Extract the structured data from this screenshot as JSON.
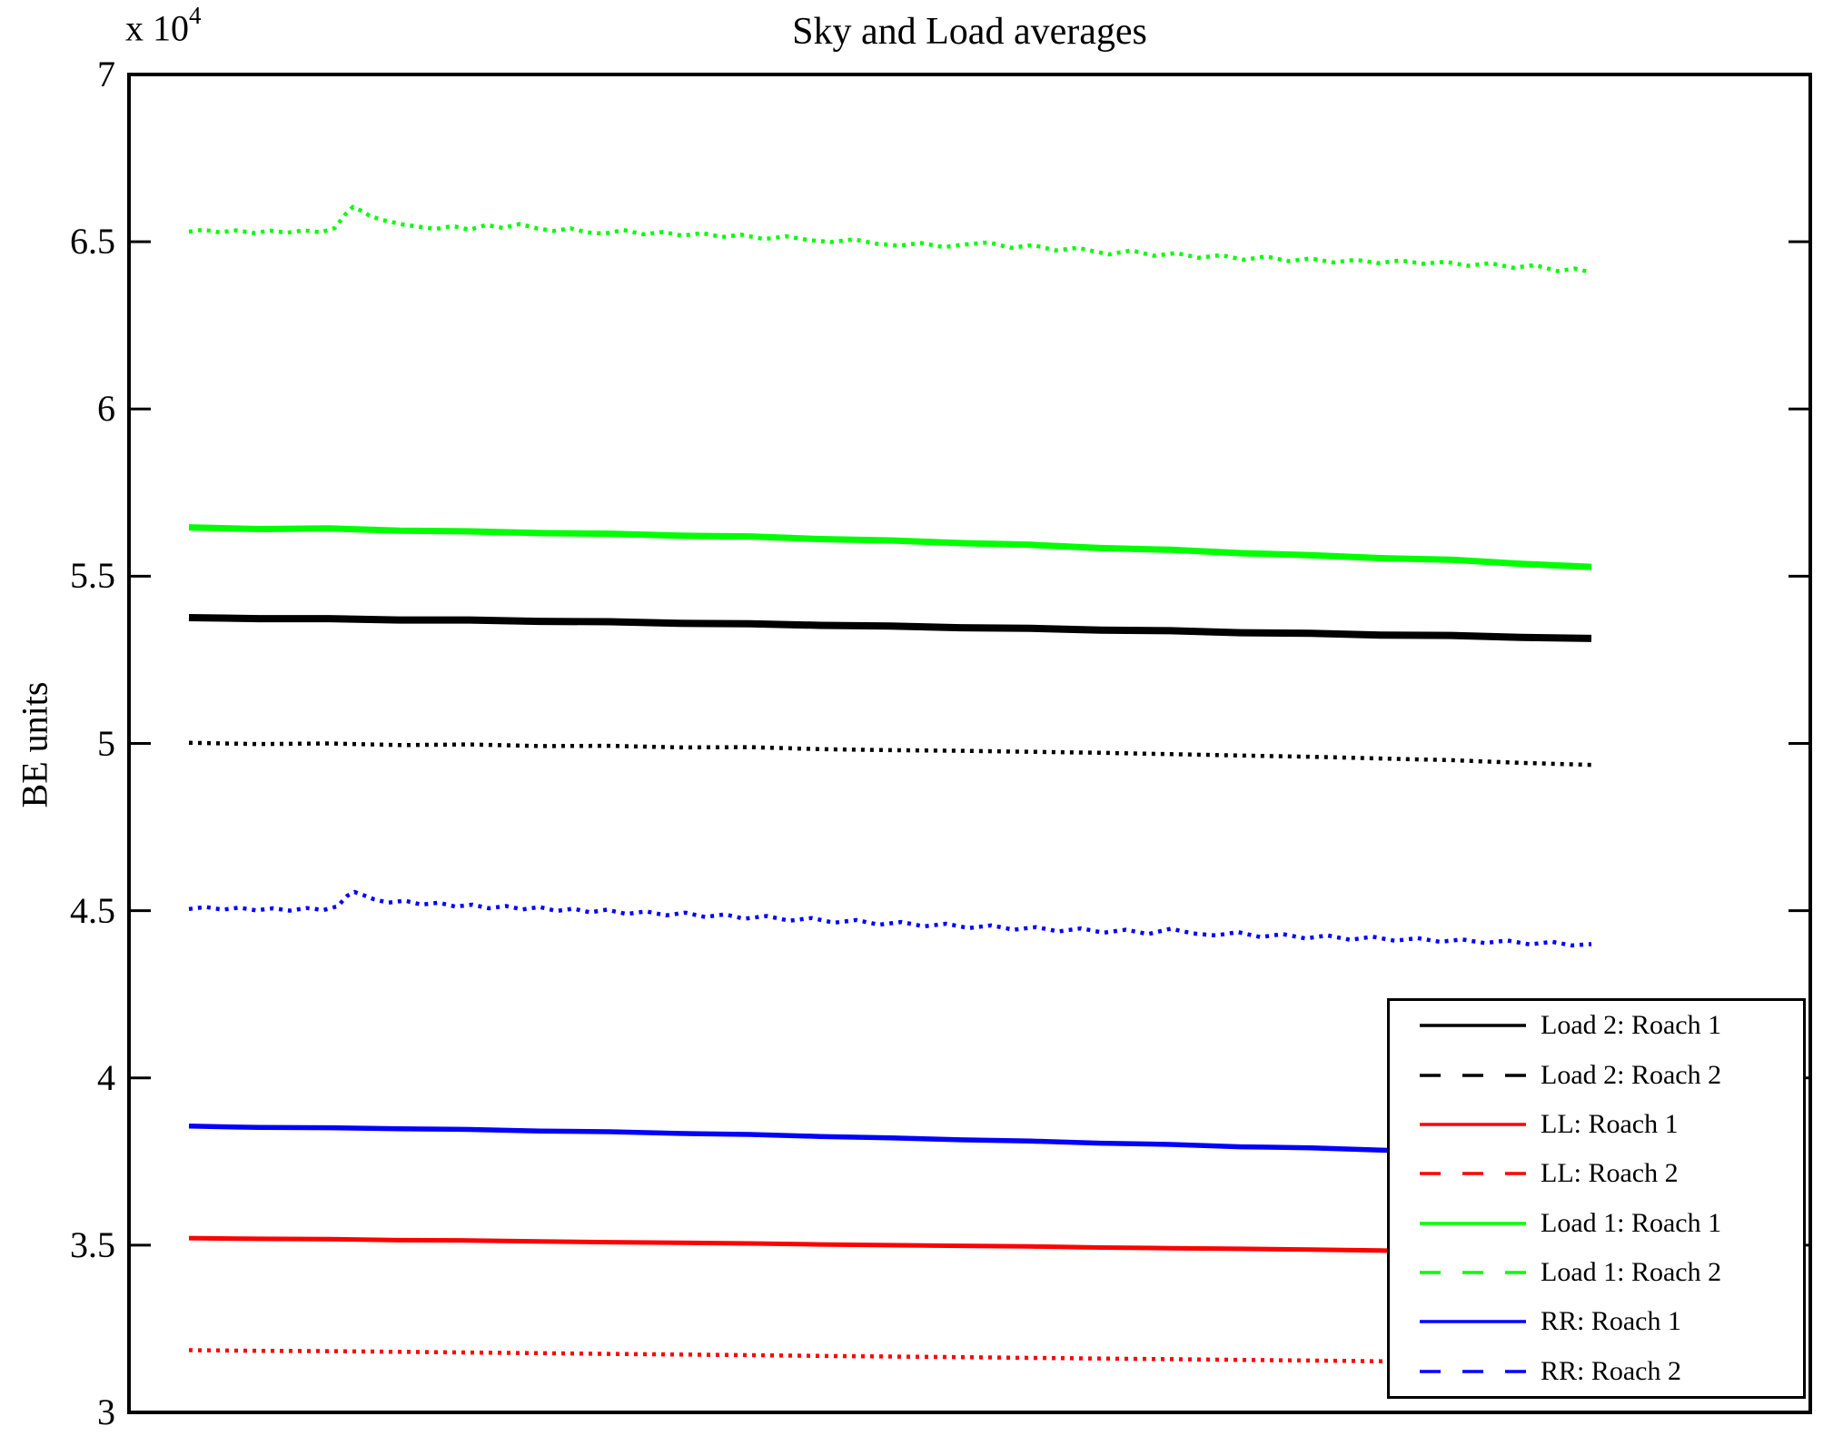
{
  "offset": {
    "base": "x 10",
    "exp": "4"
  },
  "chart_data": {
    "type": "line",
    "title": "Sky and Load averages",
    "ylabel": "BE units",
    "xlabel": "",
    "value_units": "BE units x 10^4",
    "y_multiplier_text": "x 10^4",
    "ylim": [
      3,
      7
    ],
    "yticks": [
      7,
      6.5,
      6,
      5.5,
      5,
      4.5,
      4,
      3.5,
      3
    ],
    "ytick_labels": [
      "7",
      "6.5",
      "6",
      "5.5",
      "5",
      "4.5",
      "4",
      "3.5",
      "3"
    ],
    "xticks_visible": false,
    "grid": false,
    "axis_color": "#000000",
    "background": "#ffffff",
    "legend_position": "lower right",
    "series": [
      {
        "name": "Load 2: Roach 1",
        "color": "#000000",
        "style": "solid",
        "stroke_width": 8,
        "points": [
          [
            0,
            5.376
          ],
          [
            0.05,
            5.373
          ],
          [
            0.1,
            5.373
          ],
          [
            0.15,
            5.369
          ],
          [
            0.2,
            5.369
          ],
          [
            0.25,
            5.365
          ],
          [
            0.3,
            5.364
          ],
          [
            0.35,
            5.359
          ],
          [
            0.4,
            5.358
          ],
          [
            0.45,
            5.353
          ],
          [
            0.5,
            5.351
          ],
          [
            0.55,
            5.346
          ],
          [
            0.6,
            5.344
          ],
          [
            0.65,
            5.339
          ],
          [
            0.7,
            5.337
          ],
          [
            0.75,
            5.331
          ],
          [
            0.8,
            5.329
          ],
          [
            0.85,
            5.324
          ],
          [
            0.9,
            5.323
          ],
          [
            0.95,
            5.317
          ],
          [
            1,
            5.314
          ]
        ]
      },
      {
        "name": "Load 2: Roach 2",
        "color": "#000000",
        "style": "dashed",
        "stroke_width": 4.5,
        "points": [
          [
            0,
            5.002
          ],
          [
            0.05,
            4.998
          ],
          [
            0.1,
            5.0
          ],
          [
            0.15,
            4.995
          ],
          [
            0.2,
            4.997
          ],
          [
            0.25,
            4.992
          ],
          [
            0.3,
            4.993
          ],
          [
            0.35,
            4.988
          ],
          [
            0.4,
            4.989
          ],
          [
            0.45,
            4.983
          ],
          [
            0.5,
            4.98
          ],
          [
            0.55,
            4.978
          ],
          [
            0.6,
            4.975
          ],
          [
            0.65,
            4.972
          ],
          [
            0.7,
            4.968
          ],
          [
            0.75,
            4.964
          ],
          [
            0.8,
            4.96
          ],
          [
            0.85,
            4.955
          ],
          [
            0.9,
            4.95
          ],
          [
            0.95,
            4.942
          ],
          [
            1,
            4.936
          ]
        ]
      },
      {
        "name": "LL: Roach 1",
        "color": "#ff0000",
        "style": "solid",
        "stroke_width": 5,
        "points": [
          [
            0,
            3.521
          ],
          [
            0.05,
            3.519
          ],
          [
            0.1,
            3.518
          ],
          [
            0.15,
            3.515
          ],
          [
            0.2,
            3.514
          ],
          [
            0.25,
            3.511
          ],
          [
            0.3,
            3.509
          ],
          [
            0.35,
            3.507
          ],
          [
            0.4,
            3.505
          ],
          [
            0.45,
            3.502
          ],
          [
            0.5,
            3.5
          ],
          [
            0.55,
            3.498
          ],
          [
            0.6,
            3.496
          ],
          [
            0.65,
            3.493
          ],
          [
            0.7,
            3.491
          ],
          [
            0.75,
            3.489
          ],
          [
            0.8,
            3.487
          ],
          [
            0.85,
            3.484
          ],
          [
            0.9,
            3.483
          ],
          [
            0.95,
            3.481
          ],
          [
            1,
            3.479
          ]
        ]
      },
      {
        "name": "LL: Roach 2",
        "color": "#ff0000",
        "style": "dashed",
        "stroke_width": 4.5,
        "points": [
          [
            0,
            3.186
          ],
          [
            0.05,
            3.184
          ],
          [
            0.1,
            3.183
          ],
          [
            0.15,
            3.181
          ],
          [
            0.2,
            3.179
          ],
          [
            0.25,
            3.177
          ],
          [
            0.3,
            3.175
          ],
          [
            0.35,
            3.173
          ],
          [
            0.4,
            3.171
          ],
          [
            0.45,
            3.169
          ],
          [
            0.5,
            3.167
          ],
          [
            0.55,
            3.165
          ],
          [
            0.6,
            3.163
          ],
          [
            0.65,
            3.161
          ],
          [
            0.7,
            3.159
          ],
          [
            0.75,
            3.157
          ],
          [
            0.8,
            3.155
          ],
          [
            0.85,
            3.153
          ],
          [
            0.9,
            3.152
          ],
          [
            0.95,
            3.151
          ],
          [
            1,
            3.15
          ]
        ]
      },
      {
        "name": "Load 1: Roach 1",
        "color": "#00ff00",
        "style": "solid",
        "stroke_width": 7,
        "points": [
          [
            0,
            5.646
          ],
          [
            0.05,
            5.641
          ],
          [
            0.1,
            5.643
          ],
          [
            0.15,
            5.636
          ],
          [
            0.2,
            5.634
          ],
          [
            0.25,
            5.629
          ],
          [
            0.3,
            5.627
          ],
          [
            0.35,
            5.621
          ],
          [
            0.4,
            5.619
          ],
          [
            0.45,
            5.611
          ],
          [
            0.5,
            5.607
          ],
          [
            0.55,
            5.599
          ],
          [
            0.6,
            5.594
          ],
          [
            0.65,
            5.584
          ],
          [
            0.7,
            5.579
          ],
          [
            0.75,
            5.569
          ],
          [
            0.8,
            5.563
          ],
          [
            0.85,
            5.554
          ],
          [
            0.9,
            5.549
          ],
          [
            0.95,
            5.537
          ],
          [
            1,
            5.528
          ]
        ]
      },
      {
        "name": "Load 1: Roach 2",
        "color": "#00ff00",
        "style": "dashed",
        "stroke_width": 4.5,
        "points": [
          [
            0,
            6.53
          ],
          [
            0.01,
            6.536
          ],
          [
            0.022,
            6.528
          ],
          [
            0.034,
            6.534
          ],
          [
            0.046,
            6.526
          ],
          [
            0.058,
            6.533
          ],
          [
            0.07,
            6.527
          ],
          [
            0.082,
            6.534
          ],
          [
            0.094,
            6.528
          ],
          [
            0.104,
            6.541
          ],
          [
            0.112,
            6.584
          ],
          [
            0.117,
            6.604
          ],
          [
            0.123,
            6.592
          ],
          [
            0.13,
            6.575
          ],
          [
            0.14,
            6.563
          ],
          [
            0.152,
            6.552
          ],
          [
            0.164,
            6.545
          ],
          [
            0.176,
            6.538
          ],
          [
            0.188,
            6.547
          ],
          [
            0.2,
            6.536
          ],
          [
            0.212,
            6.55
          ],
          [
            0.224,
            6.541
          ],
          [
            0.236,
            6.553
          ],
          [
            0.248,
            6.54
          ],
          [
            0.26,
            6.532
          ],
          [
            0.272,
            6.54
          ],
          [
            0.284,
            6.528
          ],
          [
            0.296,
            6.524
          ],
          [
            0.31,
            6.535
          ],
          [
            0.324,
            6.522
          ],
          [
            0.338,
            6.529
          ],
          [
            0.352,
            6.518
          ],
          [
            0.366,
            6.526
          ],
          [
            0.38,
            6.514
          ],
          [
            0.394,
            6.521
          ],
          [
            0.41,
            6.508
          ],
          [
            0.426,
            6.516
          ],
          [
            0.442,
            6.505
          ],
          [
            0.458,
            6.499
          ],
          [
            0.474,
            6.507
          ],
          [
            0.49,
            6.494
          ],
          [
            0.506,
            6.488
          ],
          [
            0.522,
            6.496
          ],
          [
            0.538,
            6.484
          ],
          [
            0.554,
            6.492
          ],
          [
            0.57,
            6.498
          ],
          [
            0.586,
            6.482
          ],
          [
            0.602,
            6.49
          ],
          [
            0.618,
            6.474
          ],
          [
            0.634,
            6.482
          ],
          [
            0.64,
            6.476
          ],
          [
            0.656,
            6.462
          ],
          [
            0.672,
            6.474
          ],
          [
            0.688,
            6.458
          ],
          [
            0.704,
            6.466
          ],
          [
            0.72,
            6.452
          ],
          [
            0.736,
            6.46
          ],
          [
            0.752,
            6.446
          ],
          [
            0.768,
            6.456
          ],
          [
            0.784,
            6.442
          ],
          [
            0.8,
            6.45
          ],
          [
            0.816,
            6.438
          ],
          [
            0.832,
            6.446
          ],
          [
            0.848,
            6.436
          ],
          [
            0.864,
            6.444
          ],
          [
            0.88,
            6.434
          ],
          [
            0.896,
            6.44
          ],
          [
            0.912,
            6.428
          ],
          [
            0.928,
            6.436
          ],
          [
            0.944,
            6.422
          ],
          [
            0.96,
            6.43
          ],
          [
            0.976,
            6.412
          ],
          [
            0.988,
            6.42
          ],
          [
            1,
            6.408
          ]
        ]
      },
      {
        "name": "RR: Roach 1",
        "color": "#0000ff",
        "style": "solid",
        "stroke_width": 5.5,
        "points": [
          [
            0,
            3.856
          ],
          [
            0.05,
            3.852
          ],
          [
            0.1,
            3.851
          ],
          [
            0.15,
            3.848
          ],
          [
            0.2,
            3.846
          ],
          [
            0.25,
            3.841
          ],
          [
            0.3,
            3.839
          ],
          [
            0.35,
            3.834
          ],
          [
            0.4,
            3.831
          ],
          [
            0.45,
            3.825
          ],
          [
            0.5,
            3.821
          ],
          [
            0.55,
            3.815
          ],
          [
            0.6,
            3.811
          ],
          [
            0.65,
            3.805
          ],
          [
            0.7,
            3.801
          ],
          [
            0.75,
            3.794
          ],
          [
            0.8,
            3.791
          ],
          [
            0.85,
            3.784
          ],
          [
            0.9,
            3.781
          ],
          [
            0.95,
            3.776
          ],
          [
            1,
            3.772
          ]
        ]
      },
      {
        "name": "RR: Roach 2",
        "color": "#0000ff",
        "style": "dashed",
        "stroke_width": 4.5,
        "points": [
          [
            0,
            4.505
          ],
          [
            0.012,
            4.511
          ],
          [
            0.024,
            4.503
          ],
          [
            0.036,
            4.509
          ],
          [
            0.048,
            4.501
          ],
          [
            0.06,
            4.507
          ],
          [
            0.072,
            4.5
          ],
          [
            0.084,
            4.508
          ],
          [
            0.096,
            4.502
          ],
          [
            0.106,
            4.513
          ],
          [
            0.113,
            4.545
          ],
          [
            0.118,
            4.556
          ],
          [
            0.124,
            4.547
          ],
          [
            0.132,
            4.534
          ],
          [
            0.142,
            4.524
          ],
          [
            0.154,
            4.53
          ],
          [
            0.166,
            4.518
          ],
          [
            0.178,
            4.524
          ],
          [
            0.19,
            4.512
          ],
          [
            0.202,
            4.518
          ],
          [
            0.214,
            4.507
          ],
          [
            0.226,
            4.514
          ],
          [
            0.238,
            4.504
          ],
          [
            0.25,
            4.511
          ],
          [
            0.262,
            4.499
          ],
          [
            0.274,
            4.506
          ],
          [
            0.286,
            4.495
          ],
          [
            0.298,
            4.503
          ],
          [
            0.312,
            4.49
          ],
          [
            0.326,
            4.498
          ],
          [
            0.34,
            4.486
          ],
          [
            0.354,
            4.494
          ],
          [
            0.368,
            4.481
          ],
          [
            0.382,
            4.489
          ],
          [
            0.396,
            4.476
          ],
          [
            0.412,
            4.484
          ],
          [
            0.428,
            4.47
          ],
          [
            0.444,
            4.478
          ],
          [
            0.46,
            4.464
          ],
          [
            0.476,
            4.472
          ],
          [
            0.492,
            4.458
          ],
          [
            0.508,
            4.466
          ],
          [
            0.524,
            4.453
          ],
          [
            0.54,
            4.461
          ],
          [
            0.556,
            4.448
          ],
          [
            0.572,
            4.456
          ],
          [
            0.588,
            4.443
          ],
          [
            0.604,
            4.451
          ],
          [
            0.62,
            4.438
          ],
          [
            0.636,
            4.447
          ],
          [
            0.652,
            4.434
          ],
          [
            0.668,
            4.443
          ],
          [
            0.684,
            4.43
          ],
          [
            0.7,
            4.446
          ],
          [
            0.716,
            4.432
          ],
          [
            0.732,
            4.426
          ],
          [
            0.748,
            4.436
          ],
          [
            0.764,
            4.421
          ],
          [
            0.78,
            4.43
          ],
          [
            0.796,
            4.417
          ],
          [
            0.812,
            4.426
          ],
          [
            0.828,
            4.413
          ],
          [
            0.844,
            4.422
          ],
          [
            0.86,
            4.41
          ],
          [
            0.876,
            4.418
          ],
          [
            0.892,
            4.407
          ],
          [
            0.908,
            4.414
          ],
          [
            0.924,
            4.403
          ],
          [
            0.94,
            4.411
          ],
          [
            0.956,
            4.399
          ],
          [
            0.972,
            4.407
          ],
          [
            0.986,
            4.396
          ],
          [
            1,
            4.4
          ]
        ]
      }
    ],
    "legend_order": [
      "Load 2: Roach 1",
      "Load 2: Roach 2",
      "LL: Roach 1",
      "LL: Roach 2",
      "Load 1: Roach 1",
      "Load 1: Roach 2",
      "RR: Roach 1",
      "RR: Roach 2"
    ]
  }
}
